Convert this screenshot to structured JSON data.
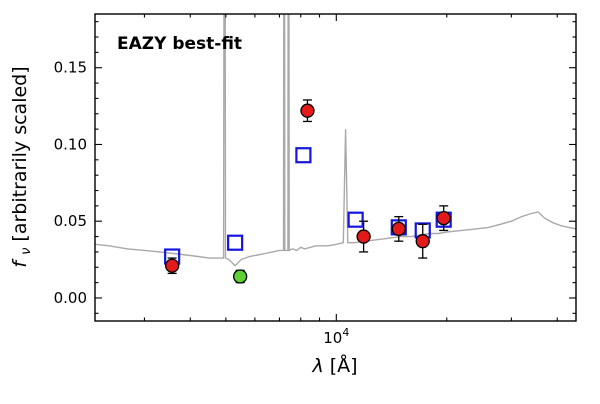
{
  "chart_data": {
    "type": "scatter",
    "title": "",
    "annotation": "EAZY best-fit",
    "xlabel_parts": {
      "lambda": "λ",
      "rest": " [Å]"
    },
    "ylabel_parts": {
      "f": "f",
      "nu": "ν",
      "rest": " [arbitrarily scaled]"
    },
    "x_scale": "log",
    "xlim": [
      2200,
      45000
    ],
    "ylim": [
      -0.015,
      0.185
    ],
    "x_major_ticks": [
      {
        "value": 10000,
        "mantissa": "10",
        "exponent": "4"
      }
    ],
    "x_minor_ticks": [
      3000,
      4000,
      5000,
      6000,
      7000,
      8000,
      9000,
      20000,
      30000,
      40000
    ],
    "y_major_ticks": [
      {
        "value": 0.0,
        "label": "0.00"
      },
      {
        "value": 0.05,
        "label": "0.05"
      },
      {
        "value": 0.1,
        "label": "0.10"
      },
      {
        "value": 0.15,
        "label": "0.15"
      }
    ],
    "y_minor_step": 0.01,
    "colors": {
      "annotation": "#ff0000",
      "frame": "#000000",
      "spectrum": "#a9a9a9",
      "model_square": "#1515e0",
      "observed_red": "#e31a1a",
      "observed_green": "#5fd035",
      "marker_edge": "#000000"
    },
    "series": [
      {
        "name": "best-fit-template-spectrum",
        "type": "line",
        "color": "#a9a9a9",
        "points": [
          [
            2200,
            0.035
          ],
          [
            2400,
            0.034
          ],
          [
            2700,
            0.032
          ],
          [
            3000,
            0.031
          ],
          [
            3300,
            0.03
          ],
          [
            3600,
            0.029
          ],
          [
            3900,
            0.028
          ],
          [
            4200,
            0.027
          ],
          [
            4500,
            0.026
          ],
          [
            4800,
            0.026
          ],
          [
            4930,
            0.026
          ],
          [
            4960,
            0.5
          ],
          [
            4990,
            0.026
          ],
          [
            5100,
            0.025
          ],
          [
            5200,
            0.023
          ],
          [
            5300,
            0.021
          ],
          [
            5400,
            0.023
          ],
          [
            5500,
            0.025
          ],
          [
            5800,
            0.027
          ],
          [
            6100,
            0.028
          ],
          [
            6400,
            0.029
          ],
          [
            6700,
            0.03
          ],
          [
            7000,
            0.031
          ],
          [
            7180,
            0.031
          ],
          [
            7210,
            0.5
          ],
          [
            7240,
            0.031
          ],
          [
            7380,
            0.031
          ],
          [
            7410,
            0.5
          ],
          [
            7440,
            0.031
          ],
          [
            7600,
            0.032
          ],
          [
            7800,
            0.031
          ],
          [
            8000,
            0.033
          ],
          [
            8200,
            0.032
          ],
          [
            8500,
            0.033
          ],
          [
            8800,
            0.034
          ],
          [
            9500,
            0.034
          ],
          [
            10000,
            0.035
          ],
          [
            10450,
            0.036
          ],
          [
            10600,
            0.11
          ],
          [
            10750,
            0.036
          ],
          [
            11200,
            0.036
          ],
          [
            12000,
            0.037
          ],
          [
            13000,
            0.038
          ],
          [
            14000,
            0.039
          ],
          [
            15000,
            0.04
          ],
          [
            16000,
            0.04
          ],
          [
            17000,
            0.041
          ],
          [
            18000,
            0.042
          ],
          [
            19000,
            0.042
          ],
          [
            20000,
            0.043
          ],
          [
            22000,
            0.044
          ],
          [
            24000,
            0.045
          ],
          [
            26000,
            0.046
          ],
          [
            28000,
            0.048
          ],
          [
            30000,
            0.05
          ],
          [
            32000,
            0.053
          ],
          [
            34000,
            0.055
          ],
          [
            35500,
            0.056
          ],
          [
            37000,
            0.052
          ],
          [
            39000,
            0.049
          ],
          [
            41000,
            0.047
          ],
          [
            43000,
            0.046
          ],
          [
            45000,
            0.045
          ]
        ]
      },
      {
        "name": "model-photometry",
        "type": "open-square",
        "color": "#1515e0",
        "points": [
          [
            3570,
            0.027
          ],
          [
            5300,
            0.036
          ],
          [
            8135,
            0.093
          ],
          [
            11290,
            0.051
          ],
          [
            14800,
            0.046
          ],
          [
            17200,
            0.044
          ],
          [
            19620,
            0.051
          ]
        ]
      },
      {
        "name": "observed-photometry",
        "type": "circle",
        "color": "#e31a1a",
        "edge": "#000000",
        "points": [
          [
            3570,
            0.021,
            0.005
          ],
          [
            8345,
            0.122,
            0.007
          ],
          [
            11870,
            0.04,
            0.01
          ],
          [
            14800,
            0.045,
            0.008
          ],
          [
            17200,
            0.037,
            0.011
          ],
          [
            19620,
            0.052,
            0.008
          ]
        ]
      },
      {
        "name": "observed-photometry-green",
        "type": "circle",
        "color": "#5fd035",
        "edge": "#000000",
        "points": [
          [
            5470,
            0.014,
            0.004
          ]
        ]
      }
    ]
  }
}
